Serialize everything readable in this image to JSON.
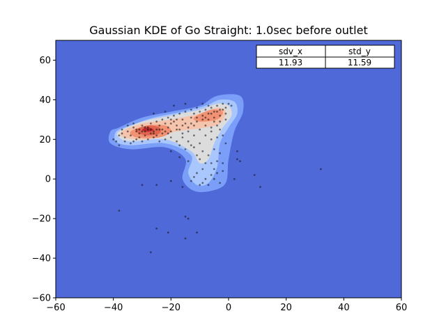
{
  "chart_data": {
    "type": "heatmap",
    "title": "Gaussian KDE of Go Straight: 1.0sec before outlet",
    "xlim": [
      -60,
      60
    ],
    "ylim": [
      -60,
      70
    ],
    "x_ticks": [
      -60,
      -40,
      -20,
      0,
      20,
      40,
      60
    ],
    "y_ticks": [
      -60,
      -40,
      -20,
      0,
      20,
      40,
      60
    ],
    "colormap": "coolwarm",
    "background_color": "#5069d9",
    "grid": false,
    "table": {
      "headers": [
        "sdv_x",
        "std_y"
      ],
      "values": [
        "11.93",
        "11.59"
      ]
    },
    "density_regions": [
      {
        "level": 1,
        "color": "#7b9ff9",
        "points": [
          [
            -41,
            24
          ],
          [
            -38,
            26
          ],
          [
            -30,
            31
          ],
          [
            -20,
            34
          ],
          [
            -10,
            37
          ],
          [
            -4,
            42
          ],
          [
            4,
            42
          ],
          [
            5,
            34
          ],
          [
            2,
            24
          ],
          [
            0,
            10
          ],
          [
            -1,
            -2
          ],
          [
            -6,
            -6
          ],
          [
            -12,
            -6
          ],
          [
            -16,
            0
          ],
          [
            -15,
            10
          ],
          [
            -22,
            16
          ],
          [
            -34,
            15
          ],
          [
            -41,
            18
          ]
        ]
      },
      {
        "level": 2,
        "color": "#aac7fd",
        "points": [
          [
            -39,
            24
          ],
          [
            -34,
            27
          ],
          [
            -26,
            31
          ],
          [
            -16,
            34
          ],
          [
            -8,
            37
          ],
          [
            -3,
            40
          ],
          [
            2,
            39
          ],
          [
            3,
            33
          ],
          [
            0,
            26
          ],
          [
            -3,
            18
          ],
          [
            -4,
            6
          ],
          [
            -7,
            -2
          ],
          [
            -11,
            -3
          ],
          [
            -14,
            3
          ],
          [
            -13,
            12
          ],
          [
            -22,
            18
          ],
          [
            -34,
            17
          ],
          [
            -39,
            19
          ]
        ]
      },
      {
        "level": 3,
        "color": "#dddcdc",
        "points": [
          [
            -38,
            24
          ],
          [
            -30,
            29
          ],
          [
            -20,
            32
          ],
          [
            -10,
            35
          ],
          [
            -4,
            38
          ],
          [
            0,
            37
          ],
          [
            1,
            32
          ],
          [
            -2,
            26
          ],
          [
            -5,
            18
          ],
          [
            -7,
            10
          ],
          [
            -10,
            8
          ],
          [
            -13,
            14
          ],
          [
            -22,
            20
          ],
          [
            -34,
            19
          ],
          [
            -38,
            21
          ]
        ]
      },
      {
        "level": 4,
        "color": "#f5c4ac",
        "points": [
          [
            -37,
            24
          ],
          [
            -30,
            28
          ],
          [
            -20,
            30
          ],
          [
            -10,
            33
          ],
          [
            -4,
            36
          ],
          [
            -1,
            34
          ],
          [
            -3,
            28
          ],
          [
            -8,
            26
          ],
          [
            -18,
            24
          ],
          [
            -28,
            20
          ],
          [
            -36,
            21
          ]
        ]
      },
      {
        "level": 5,
        "color": "#f29274",
        "points": [
          [
            -34,
            24
          ],
          [
            -28,
            27
          ],
          [
            -22,
            27
          ],
          [
            -20,
            24
          ],
          [
            -24,
            21
          ],
          [
            -32,
            21
          ]
        ]
      },
      {
        "level": 5,
        "color": "#f29274",
        "points": [
          [
            -12,
            31
          ],
          [
            -6,
            35
          ],
          [
            -2,
            34
          ],
          [
            -4,
            30
          ],
          [
            -10,
            29
          ]
        ]
      },
      {
        "level": 6,
        "color": "#e0654f",
        "points": [
          [
            -32,
            25
          ],
          [
            -28,
            27
          ],
          [
            -24,
            26
          ],
          [
            -24,
            23
          ],
          [
            -28,
            22
          ],
          [
            -31,
            23
          ]
        ]
      },
      {
        "level": 7,
        "color": "#c0282f",
        "points": [
          [
            -30,
            25
          ],
          [
            -28,
            26
          ],
          [
            -26,
            25
          ],
          [
            -27,
            24
          ],
          [
            -29,
            24
          ]
        ]
      }
    ],
    "scatter_points": [
      [
        -40,
        20
      ],
      [
        -39,
        19
      ],
      [
        -38,
        22
      ],
      [
        -37,
        23
      ],
      [
        -36,
        21
      ],
      [
        -35,
        24
      ],
      [
        -34,
        22
      ],
      [
        -33,
        26
      ],
      [
        -32,
        25
      ],
      [
        -31,
        23
      ],
      [
        -30,
        27
      ],
      [
        -29,
        24
      ],
      [
        -28,
        26
      ],
      [
        -27,
        25
      ],
      [
        -26,
        23
      ],
      [
        -25,
        22
      ],
      [
        -24,
        27
      ],
      [
        -23,
        25
      ],
      [
        -22,
        28
      ],
      [
        -21,
        26
      ],
      [
        -20,
        24
      ],
      [
        -19,
        29
      ],
      [
        -18,
        27
      ],
      [
        -17,
        25
      ],
      [
        -16,
        30
      ],
      [
        -15,
        28
      ],
      [
        -14,
        26
      ],
      [
        -13,
        31
      ],
      [
        -12,
        33
      ],
      [
        -11,
        29
      ],
      [
        -10,
        34
      ],
      [
        -9,
        32
      ],
      [
        -8,
        35
      ],
      [
        -7,
        33
      ],
      [
        -6,
        36
      ],
      [
        -5,
        34
      ],
      [
        -4,
        37
      ],
      [
        -3,
        35
      ],
      [
        -2,
        38
      ],
      [
        -1,
        36
      ],
      [
        0,
        38
      ],
      [
        -33,
        19
      ],
      [
        -31,
        21
      ],
      [
        -29,
        22
      ],
      [
        -27,
        28
      ],
      [
        -25,
        29
      ],
      [
        -21,
        31
      ],
      [
        -19,
        32
      ],
      [
        -17,
        33
      ],
      [
        -15,
        34
      ],
      [
        -13,
        35
      ],
      [
        -11,
        36
      ],
      [
        -9,
        38
      ],
      [
        -7,
        37
      ],
      [
        -5,
        31
      ],
      [
        -3,
        29
      ],
      [
        -4,
        27
      ],
      [
        -6,
        26
      ],
      [
        -8,
        22
      ],
      [
        -10,
        18
      ],
      [
        -12,
        16
      ],
      [
        -14,
        19
      ],
      [
        -16,
        21
      ],
      [
        -18,
        19
      ],
      [
        -20,
        21
      ],
      [
        -22,
        20
      ],
      [
        -24,
        19
      ],
      [
        -26,
        21
      ],
      [
        -28,
        20
      ],
      [
        -30,
        19
      ],
      [
        -32,
        20
      ],
      [
        -34,
        18
      ],
      [
        -36,
        19
      ],
      [
        -38,
        17
      ],
      [
        -6,
        20
      ],
      [
        -5,
        15
      ],
      [
        -7,
        12
      ],
      [
        -6,
        8
      ],
      [
        -5,
        5
      ],
      [
        -4,
        3
      ],
      [
        -6,
        2
      ],
      [
        -8,
        0
      ],
      [
        -9,
        -2
      ],
      [
        -10,
        -3
      ],
      [
        -12,
        1
      ],
      [
        -11,
        3
      ],
      [
        -13,
        -1
      ],
      [
        -7,
        -3
      ],
      [
        -5,
        0
      ],
      [
        -3,
        -2
      ],
      [
        -2,
        4
      ],
      [
        -4,
        9
      ],
      [
        -1,
        18
      ],
      [
        -2,
        22
      ],
      [
        -3,
        25
      ],
      [
        -9,
        14
      ],
      [
        -11,
        12
      ],
      [
        -13,
        17
      ],
      [
        -15,
        15
      ],
      [
        -17,
        17
      ],
      [
        -12,
        22
      ],
      [
        -14,
        24
      ],
      [
        -16,
        23
      ],
      [
        -18,
        25
      ],
      [
        -8,
        27
      ],
      [
        -10,
        25
      ],
      [
        -12,
        27
      ],
      [
        -9,
        30
      ],
      [
        -7,
        30
      ],
      [
        -5,
        29
      ],
      [
        -11,
        31
      ],
      [
        -26,
        24
      ],
      [
        -28,
        25
      ],
      [
        -30,
        24
      ],
      [
        -29,
        26
      ],
      [
        -27,
        23
      ],
      [
        -31,
        25
      ],
      [
        -32,
        24
      ],
      [
        -25,
        25
      ],
      [
        -23,
        23
      ],
      [
        -21,
        23
      ],
      [
        -24,
        25
      ],
      [
        -22,
        24
      ],
      [
        -20,
        28
      ],
      [
        -18,
        30
      ],
      [
        -16,
        27
      ],
      [
        -3,
        32
      ],
      [
        -2,
        35
      ],
      [
        -1,
        33
      ],
      [
        -4,
        34
      ],
      [
        -6,
        33
      ],
      [
        -8,
        31
      ],
      [
        -1,
        30
      ],
      [
        1,
        37
      ],
      [
        -19,
        37
      ],
      [
        -15,
        38
      ],
      [
        -22,
        34
      ],
      [
        -26,
        33
      ],
      [
        3,
        14
      ],
      [
        3,
        10
      ],
      [
        4,
        9
      ],
      [
        2,
        0
      ],
      [
        9,
        2
      ],
      [
        11,
        -4
      ],
      [
        -20,
        -1
      ],
      [
        -25,
        -3
      ],
      [
        -30,
        -3
      ],
      [
        -16,
        -4
      ],
      [
        -38,
        -16
      ],
      [
        -15,
        -19
      ],
      [
        -14,
        -20
      ],
      [
        -25,
        -25
      ],
      [
        -21,
        -27
      ],
      [
        -11,
        -27
      ],
      [
        -15,
        -30
      ],
      [
        -27,
        -37
      ],
      [
        32,
        5
      ],
      [
        -14,
        9
      ],
      [
        -17,
        11
      ],
      [
        -20,
        14
      ],
      [
        -35,
        27
      ],
      [
        -37,
        25
      ],
      [
        -33,
        28
      ],
      [
        -23,
        30
      ],
      [
        -20,
        30
      ],
      [
        -13,
        28
      ],
      [
        -6,
        24
      ],
      [
        -4,
        21
      ],
      [
        -3,
        13
      ],
      [
        -2,
        8
      ],
      [
        -9,
        5
      ],
      [
        -8,
        8
      ],
      [
        -10,
        10
      ]
    ]
  }
}
